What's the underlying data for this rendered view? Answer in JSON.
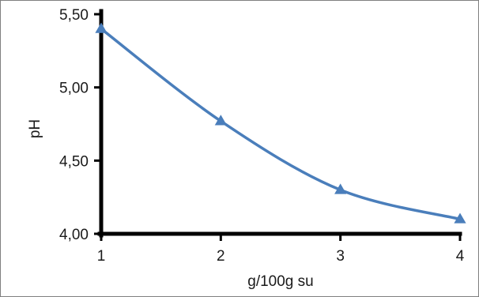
{
  "chart_data": {
    "type": "line",
    "title": "",
    "xlabel": "g/100g su",
    "ylabel": "pH",
    "x": [
      1,
      2,
      3,
      4
    ],
    "series": [
      {
        "values": [
          5.4,
          4.77,
          4.3,
          4.1
        ]
      }
    ],
    "x_ticks": [
      1,
      2,
      3,
      4
    ],
    "x_tick_labels": [
      "1",
      "2",
      "3",
      "4"
    ],
    "y_ticks": [
      4.0,
      4.5,
      5.0,
      5.5
    ],
    "y_tick_labels": [
      "4,00",
      "4,50",
      "5,00",
      "5,50"
    ],
    "xlim": [
      1,
      4
    ],
    "ylim": [
      4.0,
      5.5
    ],
    "grid": false,
    "legend": "none",
    "marker": "triangle",
    "line_style": "smooth",
    "series_color": "#4a7ebb",
    "axis_color": "#000000"
  }
}
